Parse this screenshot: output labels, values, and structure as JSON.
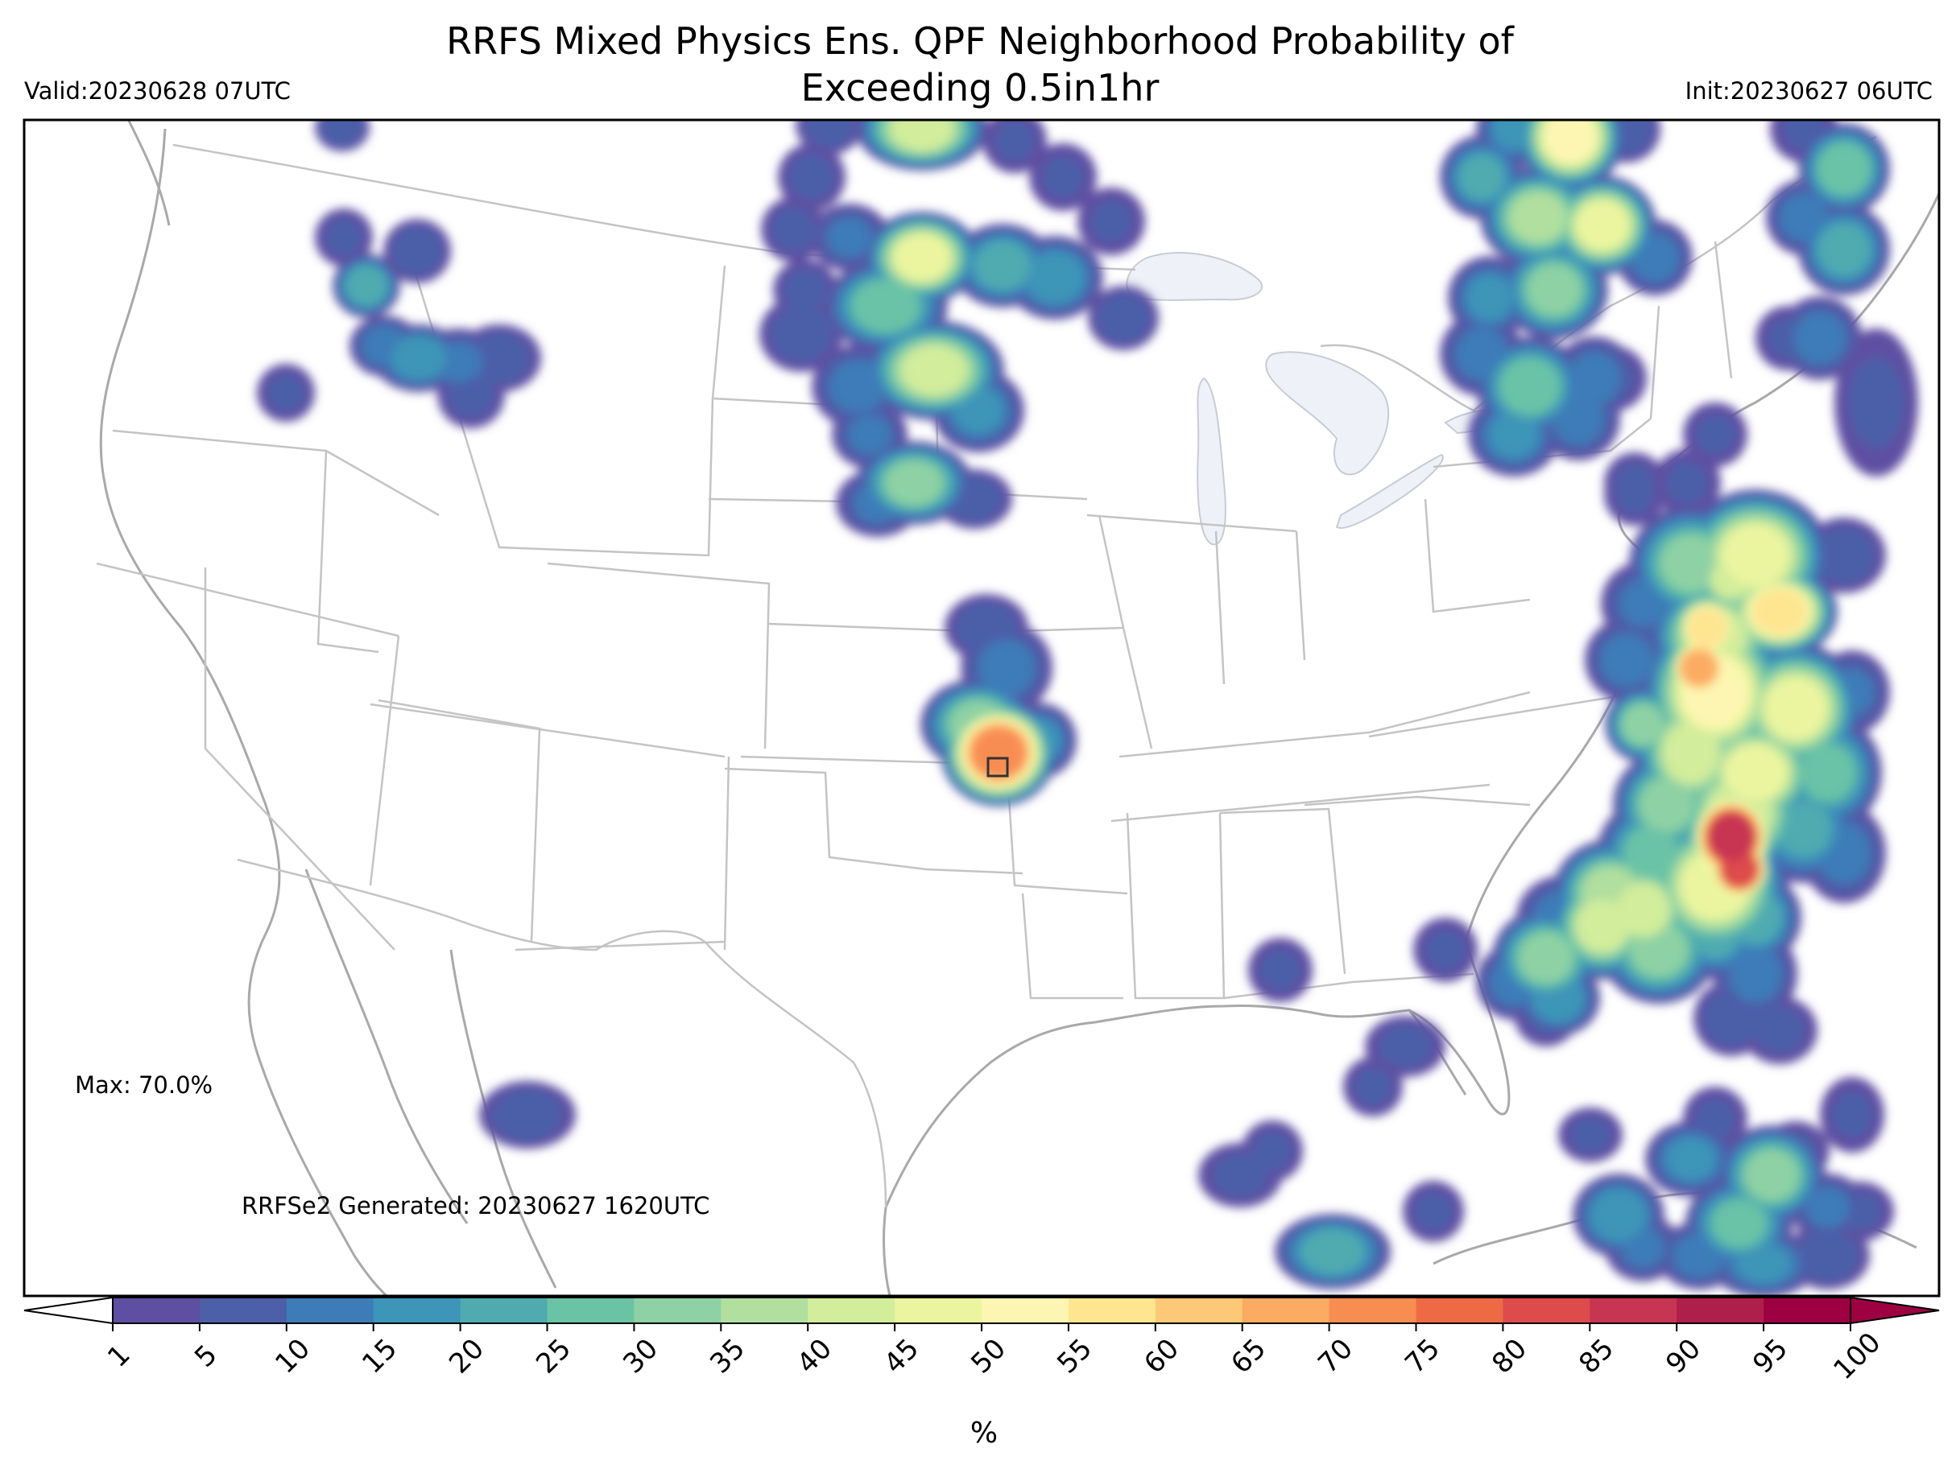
{
  "title_line1": "RRFS Mixed Physics Ens. QPF Neighborhood Probability of",
  "title_line2": "Exceeding 0.5in1hr",
  "valid": "Valid:20230628 07UTC",
  "init": "Init:20230627 06UTC",
  "max_label": "Max: 70.0%",
  "generated_label": "RRFSe2 Generated: 20230627 1620UTC",
  "colorbar": {
    "unit": "%",
    "ticks": [
      "1",
      "5",
      "10",
      "15",
      "20",
      "25",
      "30",
      "35",
      "40",
      "45",
      "50",
      "55",
      "60",
      "65",
      "70",
      "75",
      "80",
      "85",
      "90",
      "95",
      "100"
    ],
    "colors": [
      "#5e4fa2",
      "#4c5fa9",
      "#3e7cb8",
      "#3d95b8",
      "#4fabb0",
      "#6bc3a6",
      "#8ed1a4",
      "#b1df9f",
      "#d2ed9b",
      "#ebf59f",
      "#fcf6b2",
      "#fee590",
      "#fdc877",
      "#fcab63",
      "#f88d52",
      "#ee6a45",
      "#dd4b4b",
      "#c73552",
      "#ae1f4b",
      "#9e0142"
    ],
    "under_color": "#ffffff",
    "over_color": "#9e0142"
  }
}
